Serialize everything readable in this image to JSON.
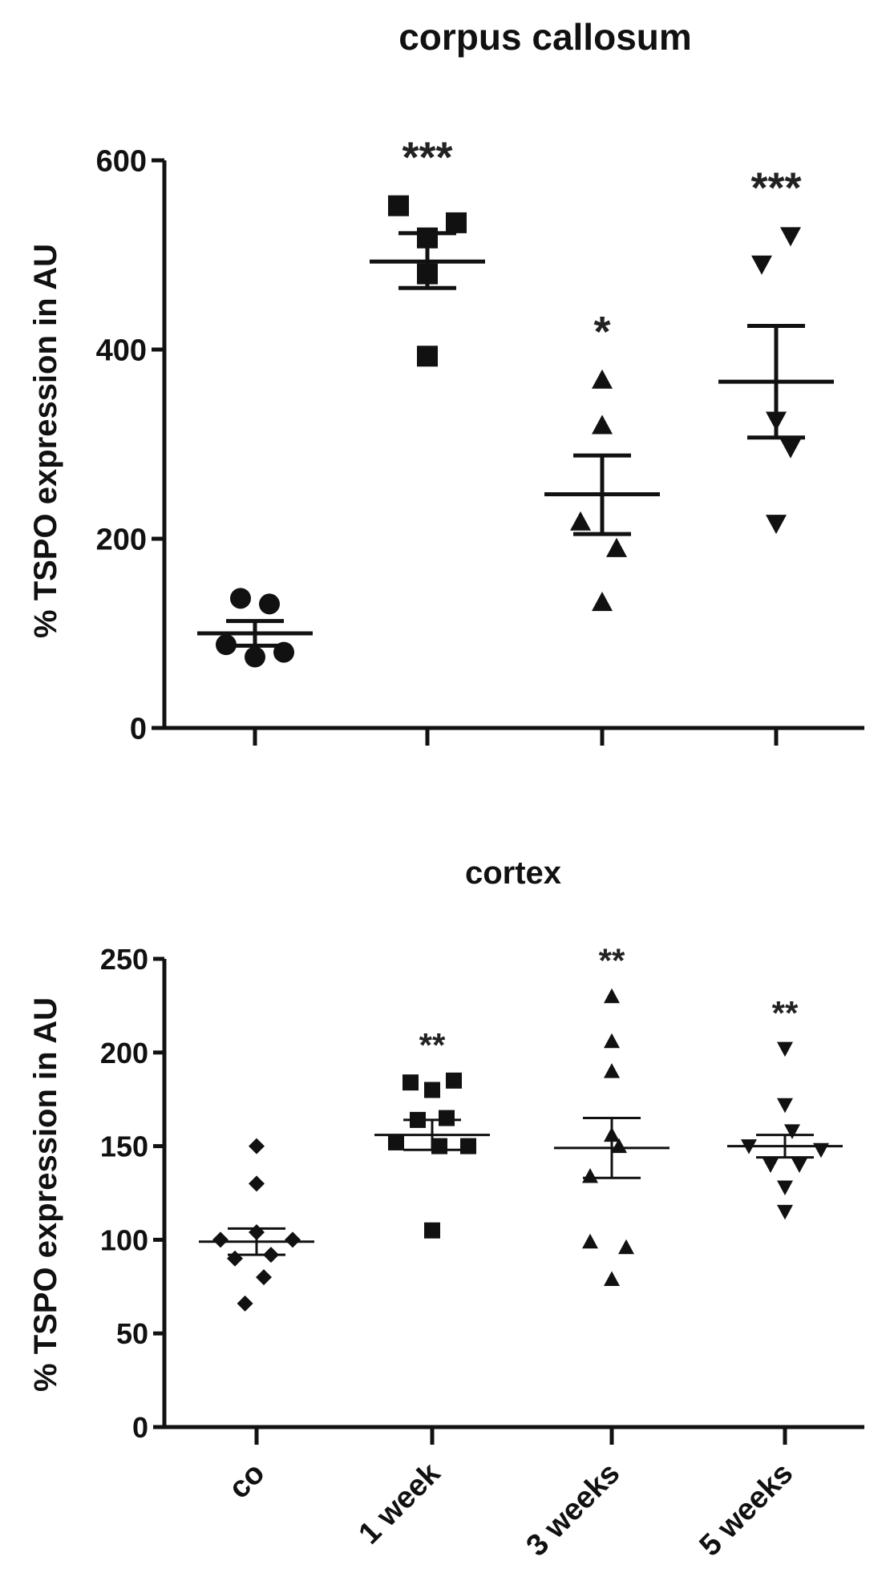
{
  "chart_data": [
    {
      "type": "scatter",
      "title": "corpus callosum",
      "ylabel": "% TSPO expression in AU",
      "xlabel": "",
      "ylim": [
        0,
        600
      ],
      "yticks": [
        "0",
        "200",
        "400",
        "600"
      ],
      "categories": [
        "co",
        "1 week",
        "3 weeks",
        "5 weeks"
      ],
      "show_category_labels": false,
      "groups": [
        {
          "category": "co",
          "marker": "circle",
          "significance": "",
          "mean": 100,
          "sem_low": 87,
          "sem_high": 113,
          "points": [
            {
              "x": -0.1,
              "y": 137
            },
            {
              "x": 0.1,
              "y": 131
            },
            {
              "x": -0.2,
              "y": 88
            },
            {
              "x": 0.0,
              "y": 75
            },
            {
              "x": 0.2,
              "y": 80
            }
          ]
        },
        {
          "category": "1 week",
          "marker": "square",
          "significance": "***",
          "mean": 493,
          "sem_low": 465,
          "sem_high": 523,
          "points": [
            {
              "x": -0.2,
              "y": 552
            },
            {
              "x": 0.2,
              "y": 534
            },
            {
              "x": 0.0,
              "y": 518
            },
            {
              "x": 0.0,
              "y": 480
            },
            {
              "x": 0.0,
              "y": 393
            }
          ]
        },
        {
          "category": "3 weeks",
          "marker": "triangle-up",
          "significance": "*",
          "mean": 247,
          "sem_low": 205,
          "sem_high": 288,
          "points": [
            {
              "x": 0.0,
              "y": 368
            },
            {
              "x": 0.0,
              "y": 320
            },
            {
              "x": -0.15,
              "y": 218
            },
            {
              "x": 0.1,
              "y": 190
            },
            {
              "x": 0.0,
              "y": 133
            }
          ]
        },
        {
          "category": "5 weeks",
          "marker": "triangle-down",
          "significance": "***",
          "mean": 366,
          "sem_low": 307,
          "sem_high": 425,
          "points": [
            {
              "x": 0.1,
              "y": 520
            },
            {
              "x": -0.1,
              "y": 490
            },
            {
              "x": 0.0,
              "y": 325
            },
            {
              "x": 0.1,
              "y": 296
            },
            {
              "x": 0.0,
              "y": 216
            }
          ]
        }
      ]
    },
    {
      "type": "scatter",
      "title": "cortex",
      "ylabel": "% TSPO expression in AU",
      "xlabel": "",
      "ylim": [
        0,
        250
      ],
      "yticks": [
        "0",
        "50",
        "100",
        "150",
        "200",
        "250"
      ],
      "categories": [
        "co",
        "1 week",
        "3 weeks",
        "5 weeks"
      ],
      "show_category_labels": true,
      "groups": [
        {
          "category": "co",
          "marker": "diamond",
          "significance": "",
          "mean": 99,
          "sem_low": 92,
          "sem_high": 106,
          "points": [
            {
              "x": 0.0,
              "y": 150
            },
            {
              "x": 0.0,
              "y": 130
            },
            {
              "x": 0.0,
              "y": 104
            },
            {
              "x": -0.25,
              "y": 100
            },
            {
              "x": 0.25,
              "y": 100
            },
            {
              "x": -0.15,
              "y": 90
            },
            {
              "x": 0.1,
              "y": 92
            },
            {
              "x": 0.05,
              "y": 80
            },
            {
              "x": -0.08,
              "y": 66
            }
          ]
        },
        {
          "category": "1 week",
          "marker": "square",
          "significance": "**",
          "mean": 156,
          "sem_low": 148,
          "sem_high": 164,
          "points": [
            {
              "x": -0.15,
              "y": 184
            },
            {
              "x": 0.15,
              "y": 185
            },
            {
              "x": 0.0,
              "y": 180
            },
            {
              "x": -0.1,
              "y": 164
            },
            {
              "x": 0.1,
              "y": 165
            },
            {
              "x": -0.25,
              "y": 152
            },
            {
              "x": 0.25,
              "y": 150
            },
            {
              "x": 0.05,
              "y": 150
            },
            {
              "x": 0.0,
              "y": 105
            }
          ]
        },
        {
          "category": "3 weeks",
          "marker": "triangle-up",
          "significance": "**",
          "mean": 149,
          "sem_low": 133,
          "sem_high": 165,
          "points": [
            {
              "x": 0.0,
              "y": 230
            },
            {
              "x": 0.0,
              "y": 206
            },
            {
              "x": 0.0,
              "y": 190
            },
            {
              "x": 0.0,
              "y": 156
            },
            {
              "x": 0.05,
              "y": 150
            },
            {
              "x": -0.15,
              "y": 134
            },
            {
              "x": -0.15,
              "y": 99
            },
            {
              "x": 0.1,
              "y": 96
            },
            {
              "x": 0.0,
              "y": 79
            }
          ]
        },
        {
          "category": "5 weeks",
          "marker": "triangle-down",
          "significance": "**",
          "mean": 150,
          "sem_low": 144,
          "sem_high": 156,
          "points": [
            {
              "x": 0.0,
              "y": 202
            },
            {
              "x": 0.0,
              "y": 172
            },
            {
              "x": 0.05,
              "y": 158
            },
            {
              "x": -0.25,
              "y": 150
            },
            {
              "x": 0.25,
              "y": 148
            },
            {
              "x": -0.1,
              "y": 140
            },
            {
              "x": 0.1,
              "y": 140
            },
            {
              "x": 0.0,
              "y": 128
            },
            {
              "x": 0.0,
              "y": 115
            }
          ]
        }
      ]
    }
  ]
}
